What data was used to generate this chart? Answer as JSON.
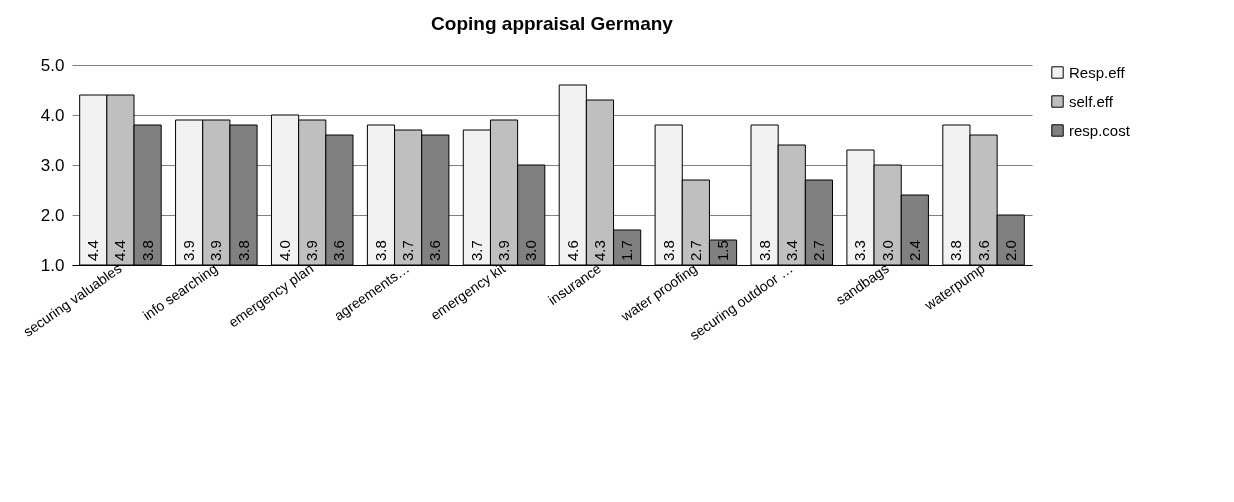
{
  "chart_data": {
    "type": "bar",
    "title": "Coping appraisal Germany",
    "categories": [
      "securing valuables",
      "info searching",
      "emergency plan",
      "agreements…",
      "emergency kit",
      "insurance",
      "water proofing",
      "securing outdoor …",
      "sandbags",
      "waterpump"
    ],
    "series": [
      {
        "name": "Resp.eff",
        "color": "#f2f2f2",
        "values": [
          4.4,
          3.9,
          4.0,
          3.8,
          3.7,
          4.6,
          3.8,
          3.8,
          3.3,
          3.8
        ],
        "value_labels": [
          "4.4",
          "3.9",
          "4.0",
          "3.8",
          "3.7",
          "4.6",
          "3.8",
          "3.8",
          "3.3",
          "3.8"
        ]
      },
      {
        "name": "self.eff",
        "color": "#bfbfbf",
        "values": [
          4.4,
          3.9,
          3.9,
          3.7,
          3.9,
          4.3,
          2.7,
          3.4,
          3.0,
          3.6
        ],
        "value_labels": [
          "4.4",
          "3.9",
          "3.9",
          "3.7",
          "3.9",
          "4.3",
          "2.7",
          "3.4",
          "3.0",
          "3.6"
        ]
      },
      {
        "name": "resp.cost",
        "color": "#808080",
        "values": [
          3.8,
          3.8,
          3.6,
          3.6,
          3.0,
          1.7,
          1.5,
          2.7,
          2.4,
          2.0
        ],
        "value_labels": [
          "3.8",
          "3.8",
          "3.6",
          "3.6",
          "3.0",
          "1.7",
          "1.5",
          "2.7",
          "2.4",
          "2.0"
        ]
      }
    ],
    "ylim": [
      1,
      5
    ],
    "yticks": [
      {
        "value": 1,
        "label": "1.0"
      },
      {
        "value": 2,
        "label": "2.0"
      },
      {
        "value": 3,
        "label": "3.0"
      },
      {
        "value": 4,
        "label": "4.0"
      },
      {
        "value": 5,
        "label": "5.0"
      }
    ],
    "grid": "y",
    "legend": "right"
  }
}
